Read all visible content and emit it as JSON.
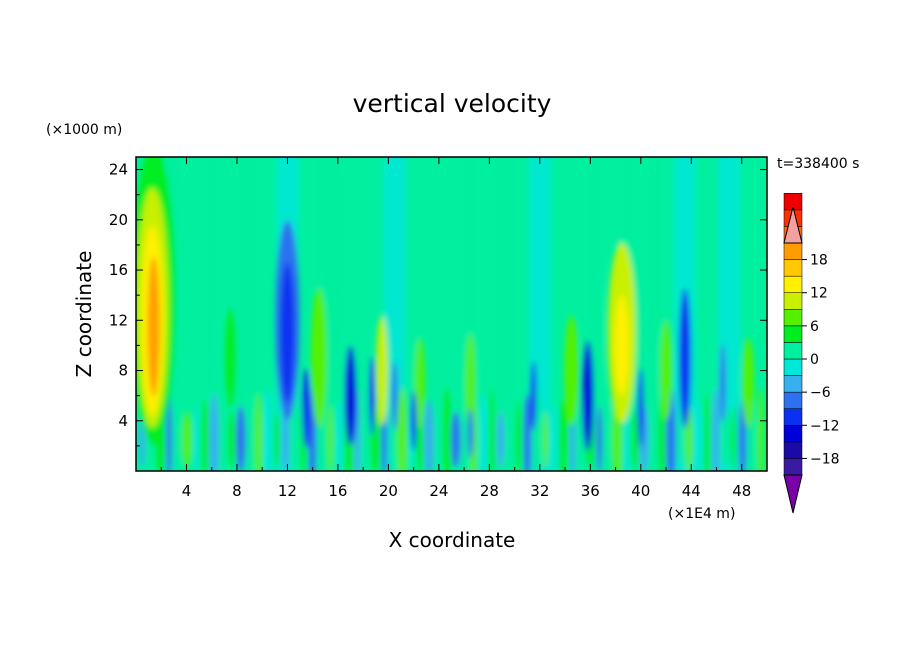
{
  "chart_data": {
    "type": "heatmap",
    "title": "vertical velocity",
    "xlabel": "X coordinate",
    "ylabel": "Z coordinate",
    "x_unit": "(×1E4 m)",
    "y_unit": "(×1000 m)",
    "time_label": "t=338400 s",
    "xlim": [
      0,
      50
    ],
    "ylim": [
      0,
      25
    ],
    "x_ticks": [
      4,
      8,
      12,
      16,
      20,
      24,
      28,
      32,
      36,
      40,
      44,
      48
    ],
    "y_ticks": [
      4,
      8,
      12,
      16,
      20,
      24
    ],
    "colorbar": {
      "min": -21,
      "max": 21,
      "step": 3,
      "tick_labels": [
        "18",
        "12",
        "6",
        "0",
        "−6",
        "−12",
        "−18"
      ],
      "tick_values": [
        18,
        12,
        6,
        0,
        -6,
        -12,
        -18
      ],
      "colors": [
        "#7a00a8",
        "#3a1aa0",
        "#1a0aa8",
        "#0000d8",
        "#0a30f0",
        "#2c72f0",
        "#36b0ee",
        "#00e8d8",
        "#00f0a0",
        "#00ee20",
        "#55f000",
        "#c8f000",
        "#fff000",
        "#ffc800",
        "#ff9c00",
        "#ff6a00",
        "#ff3000",
        "#ee0000",
        "#f4a0a0"
      ]
    },
    "features": [
      {
        "x": 1.3,
        "z": 12,
        "value": 18,
        "note": "strong updraft plume"
      },
      {
        "x": 12,
        "z": 12,
        "value": -12,
        "note": "downdraft column"
      },
      {
        "x": 17,
        "z": 6,
        "value": -15,
        "note": "downdraft core"
      },
      {
        "x": 35.8,
        "z": 6,
        "value": -15,
        "note": "downdraft core"
      },
      {
        "x": 38.5,
        "z": 12,
        "value": 9,
        "note": "updraft column"
      },
      {
        "x": 43.5,
        "z": 9,
        "value": -12,
        "note": "downdraft column"
      }
    ]
  }
}
